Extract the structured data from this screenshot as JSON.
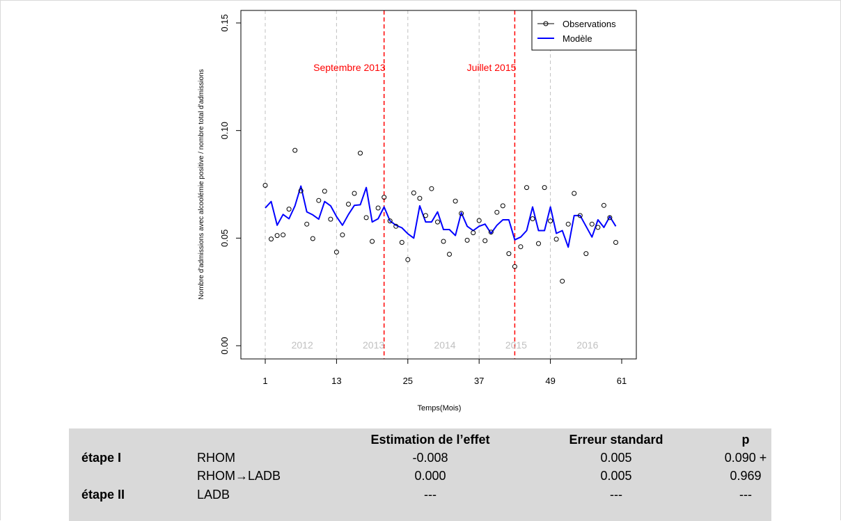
{
  "chart_data": {
    "type": "line",
    "ylabel": "Nombre d'admissions avec alcoolémie positive / nombre total d'admissions",
    "xlabel": "Temps(Mois)",
    "xlim": [
      1,
      61
    ],
    "ylim": [
      0,
      0.15
    ],
    "x_ticks": [
      "1",
      "13",
      "25",
      "37",
      "49",
      "61"
    ],
    "y_ticks": [
      "0.00",
      "0.05",
      "0.10",
      "0.15"
    ],
    "legend": {
      "position": "top-right",
      "entries": [
        "Observations",
        "Modèle"
      ]
    },
    "colors": {
      "observations": "#000000",
      "model": "#0000ff",
      "intervention": "#ff0000",
      "year_lines": "#c0c0c0",
      "year_labels": "#c0c0c0"
    },
    "year_boundaries": [
      1,
      13,
      25,
      37,
      49
    ],
    "year_labels": [
      {
        "label": "2012",
        "x": 7
      },
      {
        "label": "2013",
        "x": 19
      },
      {
        "label": "2014",
        "x": 31
      },
      {
        "label": "2015",
        "x": 43
      },
      {
        "label": "2016",
        "x": 55
      }
    ],
    "interventions": [
      {
        "label": "Septembre 2013",
        "x": 21
      },
      {
        "label": "Juillet 2015",
        "x": 43
      }
    ],
    "series": [
      {
        "name": "Observations",
        "style": "points",
        "x": [
          1,
          2,
          3,
          4,
          5,
          6,
          7,
          8,
          9,
          10,
          11,
          12,
          13,
          14,
          15,
          16,
          17,
          18,
          19,
          20,
          21,
          22,
          23,
          24,
          25,
          26,
          27,
          28,
          29,
          30,
          31,
          32,
          33,
          34,
          35,
          36,
          37,
          38,
          39,
          40,
          41,
          42,
          43,
          44,
          45,
          46,
          47,
          48,
          49,
          50,
          51,
          52,
          53,
          54,
          55,
          56,
          57,
          58,
          59,
          60
        ],
        "values": [
          0.0745,
          0.0496,
          0.0512,
          0.0515,
          0.0635,
          0.0908,
          0.072,
          0.0565,
          0.0498,
          0.0675,
          0.0718,
          0.0588,
          0.0435,
          0.0515,
          0.0658,
          0.0708,
          0.0895,
          0.0595,
          0.0485,
          0.064,
          0.069,
          0.058,
          0.0555,
          0.048,
          0.04,
          0.071,
          0.0685,
          0.0605,
          0.073,
          0.0575,
          0.0485,
          0.0425,
          0.0672,
          0.0615,
          0.049,
          0.0525,
          0.0582,
          0.0488,
          0.0528,
          0.062,
          0.065,
          0.0428,
          0.0368,
          0.046,
          0.0735,
          0.059,
          0.0475,
          0.0735,
          0.058,
          0.0495,
          0.03,
          0.0565,
          0.0708,
          0.0605,
          0.0428,
          0.0565,
          0.055,
          0.0652,
          0.0595,
          0.048
        ]
      },
      {
        "name": "Modèle",
        "style": "line",
        "x": [
          1,
          2,
          3,
          4,
          5,
          6,
          7,
          8,
          9,
          10,
          11,
          12,
          13,
          14,
          15,
          16,
          17,
          18,
          19,
          20,
          21,
          22,
          23,
          24,
          25,
          26,
          27,
          28,
          29,
          30,
          31,
          32,
          33,
          34,
          35,
          36,
          37,
          38,
          39,
          40,
          41,
          42,
          43,
          44,
          45,
          46,
          47,
          48,
          49,
          50,
          51,
          52,
          53,
          54,
          55,
          56,
          57,
          58,
          59,
          60
        ],
        "values": [
          0.064,
          0.067,
          0.056,
          0.061,
          0.059,
          0.065,
          0.0742,
          0.0622,
          0.0608,
          0.0588,
          0.067,
          0.065,
          0.06,
          0.056,
          0.061,
          0.0652,
          0.0655,
          0.0735,
          0.0575,
          0.059,
          0.0645,
          0.058,
          0.056,
          0.0548,
          0.052,
          0.05,
          0.065,
          0.0575,
          0.0575,
          0.0622,
          0.054,
          0.054,
          0.0512,
          0.0618,
          0.0555,
          0.0535,
          0.0555,
          0.0565,
          0.0522,
          0.056,
          0.0585,
          0.0585,
          0.0492,
          0.0505,
          0.0535,
          0.0645,
          0.0535,
          0.0535,
          0.0645,
          0.0522,
          0.0535,
          0.0458,
          0.0605,
          0.0605,
          0.0555,
          0.0505,
          0.0585,
          0.055,
          0.06,
          0.0555
        ]
      }
    ]
  },
  "table": {
    "headers": [
      "",
      "",
      "Estimation de l’effet",
      "Erreur standard",
      "p"
    ],
    "rows": [
      {
        "stage": "étape I",
        "term": "RHOM",
        "estimate": "-0.008",
        "se": "0.005",
        "p": "0.090 +"
      },
      {
        "stage": "",
        "term": "RHOM→LADB",
        "estimate": "0.000",
        "se": "0.005",
        "p": "0.969"
      },
      {
        "stage": "étape II",
        "term": "LADB",
        "estimate": "---",
        "se": "---",
        "p": "---"
      }
    ]
  }
}
